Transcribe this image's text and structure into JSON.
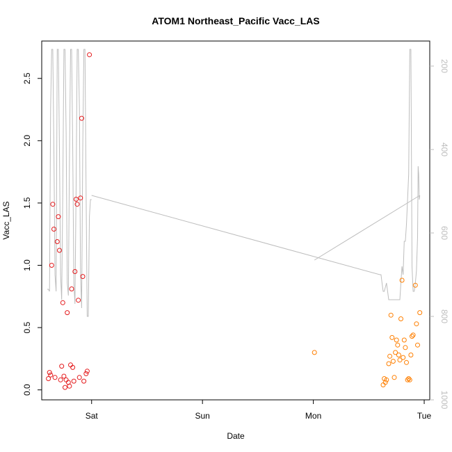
{
  "chart_data": {
    "type": "scatter",
    "title": "ATOM1 Northeast_Pacific Vacc_LAS",
    "xlabel": "Date",
    "ylabel": "Vacc_LAS",
    "x_ticks": [
      "Sat",
      "Sun",
      "Mon",
      "Tue"
    ],
    "x_tick_values": [
      1,
      2,
      3,
      4
    ],
    "xlim": [
      0.55,
      4.05
    ],
    "ylim": [
      -0.08,
      2.8
    ],
    "y_ticks": [
      0.0,
      0.5,
      1.0,
      1.5,
      2.0,
      2.5
    ],
    "y_tick_labels": [
      "0.0",
      "0.5",
      "1.0",
      "1.5",
      "2.0",
      "2.5"
    ],
    "right_axis": {
      "ticks": [
        200,
        400,
        600,
        800,
        1000
      ],
      "labels": [
        "200",
        "400",
        "600",
        "800",
        "1000"
      ],
      "range_top": 160,
      "range_bottom": 1020,
      "color": "#bdbdbd"
    },
    "series": [
      {
        "color": "#e41a1c",
        "marker": "open-circle",
        "points": [
          [
            0.61,
            0.09
          ],
          [
            0.62,
            0.14
          ],
          [
            0.63,
            0.12
          ],
          [
            0.64,
            1.0
          ],
          [
            0.65,
            1.49
          ],
          [
            0.66,
            1.29
          ],
          [
            0.67,
            0.1
          ],
          [
            0.69,
            1.19
          ],
          [
            0.7,
            1.39
          ],
          [
            0.71,
            1.12
          ],
          [
            0.72,
            0.08
          ],
          [
            0.73,
            0.19
          ],
          [
            0.74,
            0.7
          ],
          [
            0.75,
            0.11
          ],
          [
            0.76,
            0.02
          ],
          [
            0.77,
            0.08
          ],
          [
            0.78,
            0.62
          ],
          [
            0.79,
            0.06
          ],
          [
            0.8,
            0.03
          ],
          [
            0.81,
            0.2
          ],
          [
            0.82,
            0.81
          ],
          [
            0.83,
            0.18
          ],
          [
            0.84,
            0.07
          ],
          [
            0.85,
            0.95
          ],
          [
            0.86,
            1.53
          ],
          [
            0.87,
            1.49
          ],
          [
            0.88,
            0.72
          ],
          [
            0.89,
            0.1
          ],
          [
            0.9,
            1.54
          ],
          [
            0.91,
            2.18
          ],
          [
            0.92,
            0.91
          ],
          [
            0.93,
            0.07
          ],
          [
            0.95,
            0.13
          ],
          [
            0.96,
            0.15
          ],
          [
            0.98,
            2.69
          ]
        ]
      },
      {
        "color": "#ff7f00",
        "marker": "open-circle",
        "points": [
          [
            3.01,
            0.3
          ],
          [
            3.63,
            0.04
          ],
          [
            3.64,
            0.09
          ],
          [
            3.65,
            0.06
          ],
          [
            3.66,
            0.08
          ],
          [
            3.68,
            0.21
          ],
          [
            3.69,
            0.27
          ],
          [
            3.7,
            0.6
          ],
          [
            3.71,
            0.42
          ],
          [
            3.72,
            0.23
          ],
          [
            3.73,
            0.1
          ],
          [
            3.74,
            0.3
          ],
          [
            3.75,
            0.4
          ],
          [
            3.76,
            0.36
          ],
          [
            3.77,
            0.28
          ],
          [
            3.78,
            0.24
          ],
          [
            3.79,
            0.57
          ],
          [
            3.8,
            0.88
          ],
          [
            3.81,
            0.26
          ],
          [
            3.82,
            0.4
          ],
          [
            3.83,
            0.34
          ],
          [
            3.84,
            0.22
          ],
          [
            3.85,
            0.08
          ],
          [
            3.86,
            0.09
          ],
          [
            3.87,
            0.08
          ],
          [
            3.88,
            0.28
          ],
          [
            3.89,
            0.43
          ],
          [
            3.9,
            0.44
          ],
          [
            3.92,
            0.84
          ],
          [
            3.93,
            0.53
          ],
          [
            3.94,
            0.36
          ],
          [
            3.96,
            0.62
          ]
        ]
      }
    ],
    "pressure_trace": {
      "color": "#bdbdbd",
      "note": "",
      "points": [
        [
          0.6,
          735
        ],
        [
          0.61,
          735
        ],
        [
          0.62,
          740
        ],
        [
          0.63,
          300
        ],
        [
          0.64,
          160
        ],
        [
          0.65,
          160
        ],
        [
          0.66,
          400
        ],
        [
          0.67,
          700
        ],
        [
          0.68,
          740
        ],
        [
          0.69,
          160
        ],
        [
          0.7,
          160
        ],
        [
          0.71,
          400
        ],
        [
          0.72,
          700
        ],
        [
          0.73,
          760
        ],
        [
          0.74,
          500
        ],
        [
          0.75,
          160
        ],
        [
          0.76,
          160
        ],
        [
          0.77,
          360
        ],
        [
          0.78,
          720
        ],
        [
          0.79,
          750
        ],
        [
          0.8,
          420
        ],
        [
          0.81,
          160
        ],
        [
          0.82,
          160
        ],
        [
          0.83,
          400
        ],
        [
          0.84,
          720
        ],
        [
          0.85,
          770
        ],
        [
          0.86,
          500
        ],
        [
          0.87,
          160
        ],
        [
          0.88,
          160
        ],
        [
          0.89,
          300
        ],
        [
          0.9,
          700
        ],
        [
          0.91,
          780
        ],
        [
          0.92,
          400
        ],
        [
          0.93,
          160
        ],
        [
          0.94,
          160
        ],
        [
          0.95,
          500
        ],
        [
          0.96,
          800
        ],
        [
          0.97,
          800
        ],
        [
          0.98,
          560
        ],
        [
          0.99,
          520
        ],
        [
          1.0,
          520
        ],
        [
          3.0,
          650
        ],
        [
          3.02,
          640
        ],
        [
          3.8,
          510
        ],
        [
          3.85,
          500
        ],
        [
          3.92,
          500
        ],
        [
          3.95,
          510
        ],
        [
          3.95,
          510
        ]
      ],
      "segments": [
        [
          [
            1.0,
            510
          ],
          [
            3.6,
            700
          ],
          [
            3.61,
            700
          ],
          [
            3.62,
            720
          ],
          [
            3.63,
            740
          ],
          [
            3.64,
            740
          ],
          [
            3.66,
            720
          ],
          [
            3.68,
            760
          ],
          [
            3.7,
            760
          ],
          [
            3.72,
            760
          ],
          [
            3.74,
            760
          ],
          [
            3.76,
            760
          ],
          [
            3.78,
            760
          ],
          [
            3.79,
            720
          ],
          [
            3.8,
            680
          ],
          [
            3.81,
            700
          ],
          [
            3.82,
            620
          ],
          [
            3.83,
            620
          ],
          [
            3.84,
            580
          ],
          [
            3.85,
            520
          ],
          [
            3.86,
            460
          ],
          [
            3.87,
            160
          ],
          [
            3.88,
            160
          ],
          [
            3.89,
            680
          ],
          [
            3.9,
            740
          ],
          [
            3.91,
            740
          ],
          [
            3.92,
            720
          ],
          [
            3.93,
            690
          ],
          [
            3.94,
            610
          ],
          [
            3.945,
            440
          ],
          [
            3.95,
            460
          ],
          [
            3.955,
            520
          ],
          [
            3.96,
            510
          ]
        ],
        [
          [
            3.01,
            665
          ],
          [
            3.96,
            510
          ]
        ]
      ]
    }
  }
}
